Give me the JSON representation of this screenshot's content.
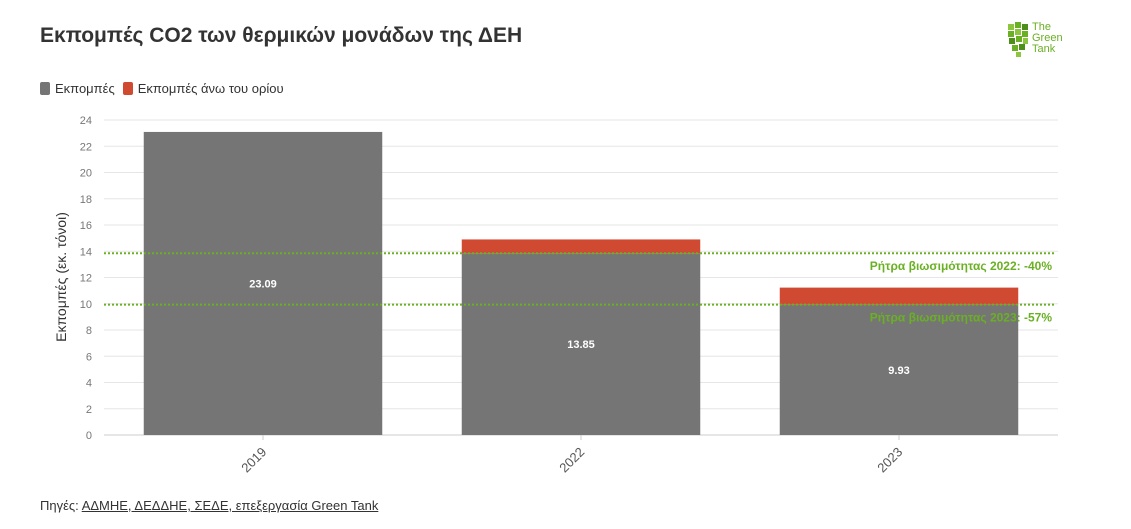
{
  "title": "Εκπομπές CO2 των θερμικών μονάδων της ΔΕΗ",
  "logo": {
    "line1": "The",
    "line2": "Green",
    "line3": "Tank",
    "color": "#6ab023"
  },
  "legend": [
    {
      "label": "Εκπομπές",
      "color": "#757575"
    },
    {
      "label": "Εκπομπές άνω του ορίου",
      "color": "#d04a31"
    }
  ],
  "source": {
    "prefix": "Πηγές: ",
    "link": "ΑΔΜΗΕ, ΔΕΔΔΗΕ, ΣΕΔΕ, επεξεργασία Green Tank"
  },
  "chart_data": {
    "type": "bar",
    "stacked": true,
    "categories": [
      "2019",
      "2022",
      "2023"
    ],
    "series": [
      {
        "name": "Εκπομπές",
        "values": [
          23.09,
          13.85,
          9.93
        ],
        "color": "#757575",
        "labels": [
          "23.09",
          "13.85",
          "9.93"
        ]
      },
      {
        "name": "Εκπομπές άνω του ορίου",
        "values": [
          0,
          1.05,
          1.3
        ],
        "color": "#d04a31"
      }
    ],
    "ylabel": "Εκπομπές (εκ. τόνοι)",
    "ylim": [
      0,
      24
    ],
    "yticks": [
      0,
      2,
      4,
      6,
      8,
      10,
      12,
      14,
      16,
      18,
      20,
      22,
      24
    ],
    "grid": true,
    "reference_lines": [
      {
        "value": 13.85,
        "label": "Ρήτρα βιωσιμότητας 2022: -40%",
        "color": "#6ab023"
      },
      {
        "value": 9.93,
        "label": "Ρήτρα βιωσιμότητας 2023: -57%",
        "color": "#6ab023"
      }
    ]
  }
}
